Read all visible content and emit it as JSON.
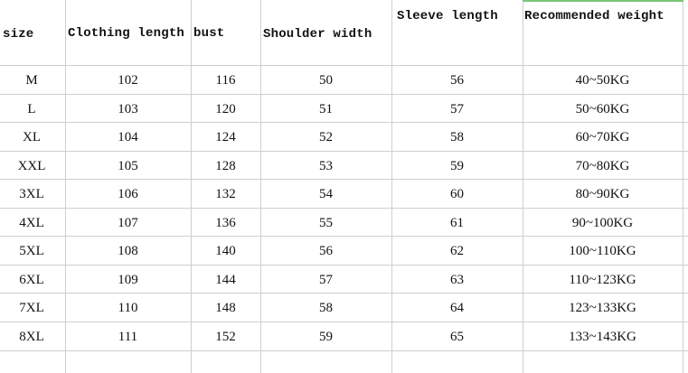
{
  "headers": {
    "size": "size",
    "clothing_length": "Clothing length",
    "bust": "bust",
    "shoulder_width": "Shoulder width",
    "sleeve_length": "Sleeve length",
    "recommended_weight": "Recommended weight"
  },
  "rows": [
    {
      "size": "M",
      "clothing_length": "102",
      "bust": "116",
      "shoulder": "50",
      "sleeve": "56",
      "weight": "40~50KG"
    },
    {
      "size": "L",
      "clothing_length": "103",
      "bust": "120",
      "shoulder": "51",
      "sleeve": "57",
      "weight": "50~60KG"
    },
    {
      "size": "XL",
      "clothing_length": "104",
      "bust": "124",
      "shoulder": "52",
      "sleeve": "58",
      "weight": "60~70KG"
    },
    {
      "size": "XXL",
      "clothing_length": "105",
      "bust": "128",
      "shoulder": "53",
      "sleeve": "59",
      "weight": "70~80KG"
    },
    {
      "size": "3XL",
      "clothing_length": "106",
      "bust": "132",
      "shoulder": "54",
      "sleeve": "60",
      "weight": "80~90KG"
    },
    {
      "size": "4XL",
      "clothing_length": "107",
      "bust": "136",
      "shoulder": "55",
      "sleeve": "61",
      "weight": "90~100KG"
    },
    {
      "size": "5XL",
      "clothing_length": "108",
      "bust": "140",
      "shoulder": "56",
      "sleeve": "62",
      "weight": "100~110KG"
    },
    {
      "size": "6XL",
      "clothing_length": "109",
      "bust": "144",
      "shoulder": "57",
      "sleeve": "63",
      "weight": "110~123KG"
    },
    {
      "size": "7XL",
      "clothing_length": "110",
      "bust": "148",
      "shoulder": "58",
      "sleeve": "64",
      "weight": "123~133KG"
    },
    {
      "size": "8XL",
      "clothing_length": "111",
      "bust": "152",
      "shoulder": "59",
      "sleeve": "65",
      "weight": "133~143KG"
    }
  ],
  "colors": {
    "grid": "#cfcfcf",
    "selected_cell_border": "#7cc47a"
  }
}
